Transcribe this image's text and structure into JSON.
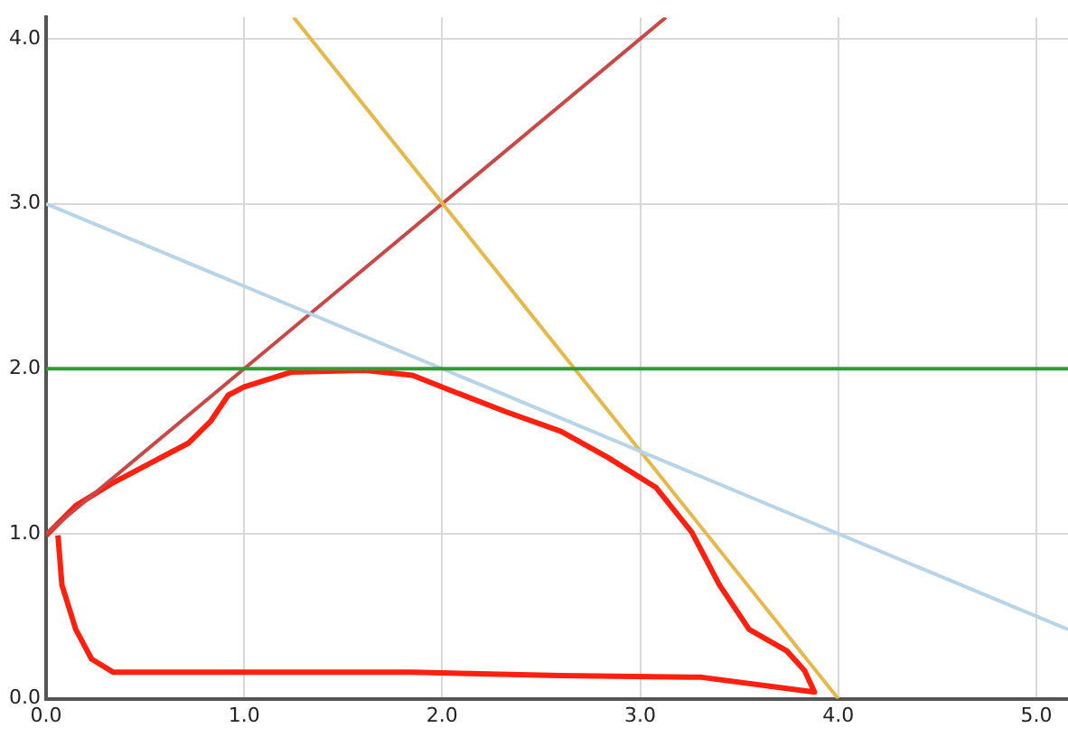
{
  "chart_data": {
    "type": "line",
    "xlim": [
      0,
      5.16
    ],
    "ylim": [
      0,
      4.13
    ],
    "xticks": [
      {
        "value": 0,
        "label": "0.0"
      },
      {
        "value": 1,
        "label": "1.0"
      },
      {
        "value": 2,
        "label": "2.0"
      },
      {
        "value": 3,
        "label": "3.0"
      },
      {
        "value": 4,
        "label": "4.0"
      },
      {
        "value": 5,
        "label": "5.0"
      }
    ],
    "yticks": [
      {
        "value": 0,
        "label": "0.0"
      },
      {
        "value": 1,
        "label": "1.0"
      },
      {
        "value": 2,
        "label": "2.0"
      },
      {
        "value": 3,
        "label": "3.0"
      },
      {
        "value": 4,
        "label": "4.0"
      }
    ],
    "grid": true,
    "legend": false,
    "marker": "none",
    "line_style": "solid",
    "series": [
      {
        "color": "#339933",
        "x": [
          0,
          5.16
        ],
        "values": [
          2,
          2
        ]
      },
      {
        "color": "#b8d4e8",
        "x": [
          0,
          5.16
        ],
        "values": [
          3,
          0.42
        ]
      },
      {
        "color": "#e6b84a",
        "x": [
          1.25,
          4
        ],
        "values": [
          4.13,
          0
        ]
      },
      {
        "color": "#c84848",
        "x": [
          0,
          3.13
        ],
        "values": [
          1,
          4.13
        ]
      },
      {
        "color": "#ff2010",
        "x": [
          0,
          0.15,
          0.34,
          0.53,
          0.72,
          0.83,
          0.92,
          1.0,
          1.24,
          1.61,
          1.85,
          2.04,
          2.32,
          2.6,
          2.84,
          3.08,
          3.26,
          3.4,
          3.55,
          3.74,
          3.83,
          3.88,
          3.31,
          2.6,
          1.85,
          0.34,
          0.23,
          0.15,
          0.08,
          0.06
        ],
        "values": [
          0.99,
          1.17,
          1.31,
          1.43,
          1.55,
          1.68,
          1.84,
          1.89,
          1.98,
          1.99,
          1.96,
          1.87,
          1.74,
          1.62,
          1.46,
          1.28,
          1.01,
          0.69,
          0.42,
          0.29,
          0.17,
          0.04,
          0.13,
          0.14,
          0.16,
          0.16,
          0.24,
          0.42,
          0.69,
          0.99
        ]
      }
    ]
  }
}
